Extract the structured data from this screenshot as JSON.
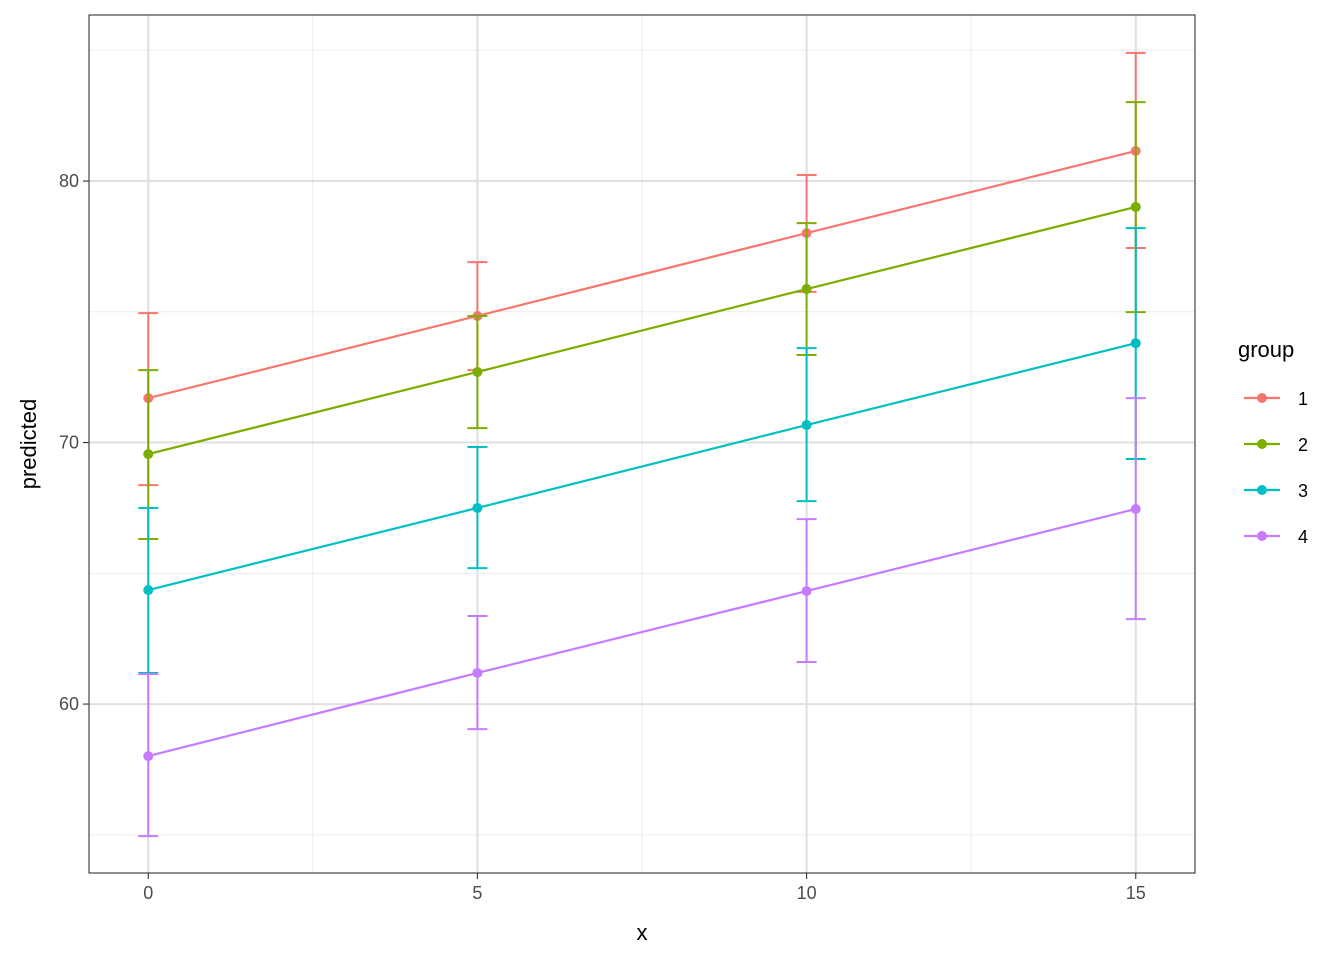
{
  "chart_data": {
    "type": "line",
    "title": "",
    "xlabel": "x",
    "ylabel": "predicted",
    "xlim": [
      -0.9,
      15.9
    ],
    "ylim": [
      53.54,
      86.35
    ],
    "x_ticks": [
      0,
      5,
      10,
      15
    ],
    "y_ticks": [
      60,
      70,
      80
    ],
    "x_minor": [
      2.5,
      7.5,
      12.5
    ],
    "y_minor": [
      55,
      65,
      75,
      85
    ],
    "grid": true,
    "legend": {
      "title": "group",
      "placement": "right"
    },
    "x": [
      0,
      5,
      10,
      15
    ],
    "series": [
      {
        "name": "1",
        "color": "#F8766D",
        "values": [
          71.7,
          74.84,
          78.01,
          81.15
        ],
        "lower": [
          68.37,
          72.77,
          75.76,
          77.44
        ],
        "upper": [
          74.95,
          76.9,
          80.23,
          84.9
        ]
      },
      {
        "name": "2",
        "color": "#7CAE00",
        "values": [
          69.56,
          72.7,
          75.87,
          79.01
        ],
        "lower": [
          66.31,
          70.55,
          73.35,
          74.99
        ],
        "upper": [
          72.77,
          74.84,
          78.39,
          83.02
        ]
      },
      {
        "name": "3",
        "color": "#00BFC4",
        "values": [
          64.36,
          67.5,
          70.67,
          73.8
        ],
        "lower": [
          61.19,
          65.2,
          67.76,
          69.37
        ],
        "upper": [
          67.5,
          69.83,
          73.61,
          78.2
        ]
      },
      {
        "name": "4",
        "color": "#C77CFF",
        "values": [
          58.01,
          61.19,
          64.32,
          67.46
        ],
        "lower": [
          54.95,
          59.04,
          61.61,
          63.25
        ],
        "upper": [
          61.15,
          63.37,
          67.07,
          71.7
        ]
      }
    ]
  }
}
